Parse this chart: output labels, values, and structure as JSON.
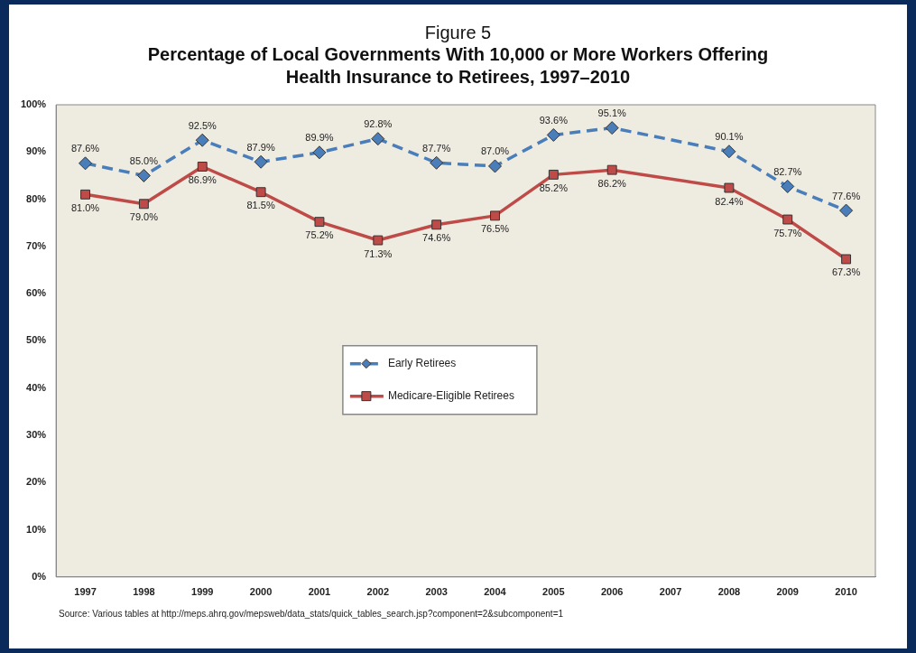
{
  "chart_data": {
    "type": "line",
    "title": "Figure 5",
    "subtitle": "Percentage of Local Governments With 10,000 or More Workers Offering Health Insurance to Retirees, 1997–2010",
    "categories": [
      "1997",
      "1998",
      "1999",
      "2000",
      "2001",
      "2002",
      "2003",
      "2004",
      "2005",
      "2006",
      "2007",
      "2008",
      "2009",
      "2010"
    ],
    "series": [
      {
        "name": "Early Retirees",
        "color": "#4a7ebb",
        "marker": "diamond",
        "line_style": "dashed",
        "values": [
          87.6,
          85.0,
          92.5,
          87.9,
          89.9,
          92.8,
          87.7,
          87.0,
          93.6,
          95.1,
          null,
          90.1,
          82.7,
          77.6
        ],
        "value_labels": [
          "87.6%",
          "85.0%",
          "92.5%",
          "87.9%",
          "89.9%",
          "92.8%",
          "87.7%",
          "87.0%",
          "93.6%",
          "95.1%",
          null,
          "90.1%",
          "82.7%",
          "77.6%"
        ]
      },
      {
        "name": "Medicare-Eligible Retirees",
        "color": "#be4b48",
        "marker": "square",
        "line_style": "solid",
        "values": [
          81.0,
          79.0,
          86.9,
          81.5,
          75.2,
          71.3,
          74.6,
          76.5,
          85.2,
          86.2,
          null,
          82.4,
          75.7,
          67.3
        ],
        "value_labels": [
          "81.0%",
          "79.0%",
          "86.9%",
          "81.5%",
          "75.2%",
          "71.3%",
          "74.6%",
          "76.5%",
          "85.2%",
          "86.2%",
          null,
          "82.4%",
          "75.7%",
          "67.3%"
        ]
      }
    ],
    "ylim": [
      0,
      100
    ],
    "yticks": [
      {
        "value": 0,
        "label": "0%"
      },
      {
        "value": 10,
        "label": "10%"
      },
      {
        "value": 20,
        "label": "20%"
      },
      {
        "value": 30,
        "label": "30%"
      },
      {
        "value": 40,
        "label": "40%"
      },
      {
        "value": 50,
        "label": "50%"
      },
      {
        "value": 60,
        "label": "60%"
      },
      {
        "value": 70,
        "label": "70%"
      },
      {
        "value": 80,
        "label": "80%"
      },
      {
        "value": 90,
        "label": "90%"
      },
      {
        "value": 100,
        "label": "100%"
      }
    ],
    "grid": false,
    "legend": "center",
    "annotations": [
      "Source: Various tables at http://meps.ahrq.gov/mepsweb/data_stats/quick_tables_search.jsp?component=2&subcomponent=1"
    ]
  }
}
